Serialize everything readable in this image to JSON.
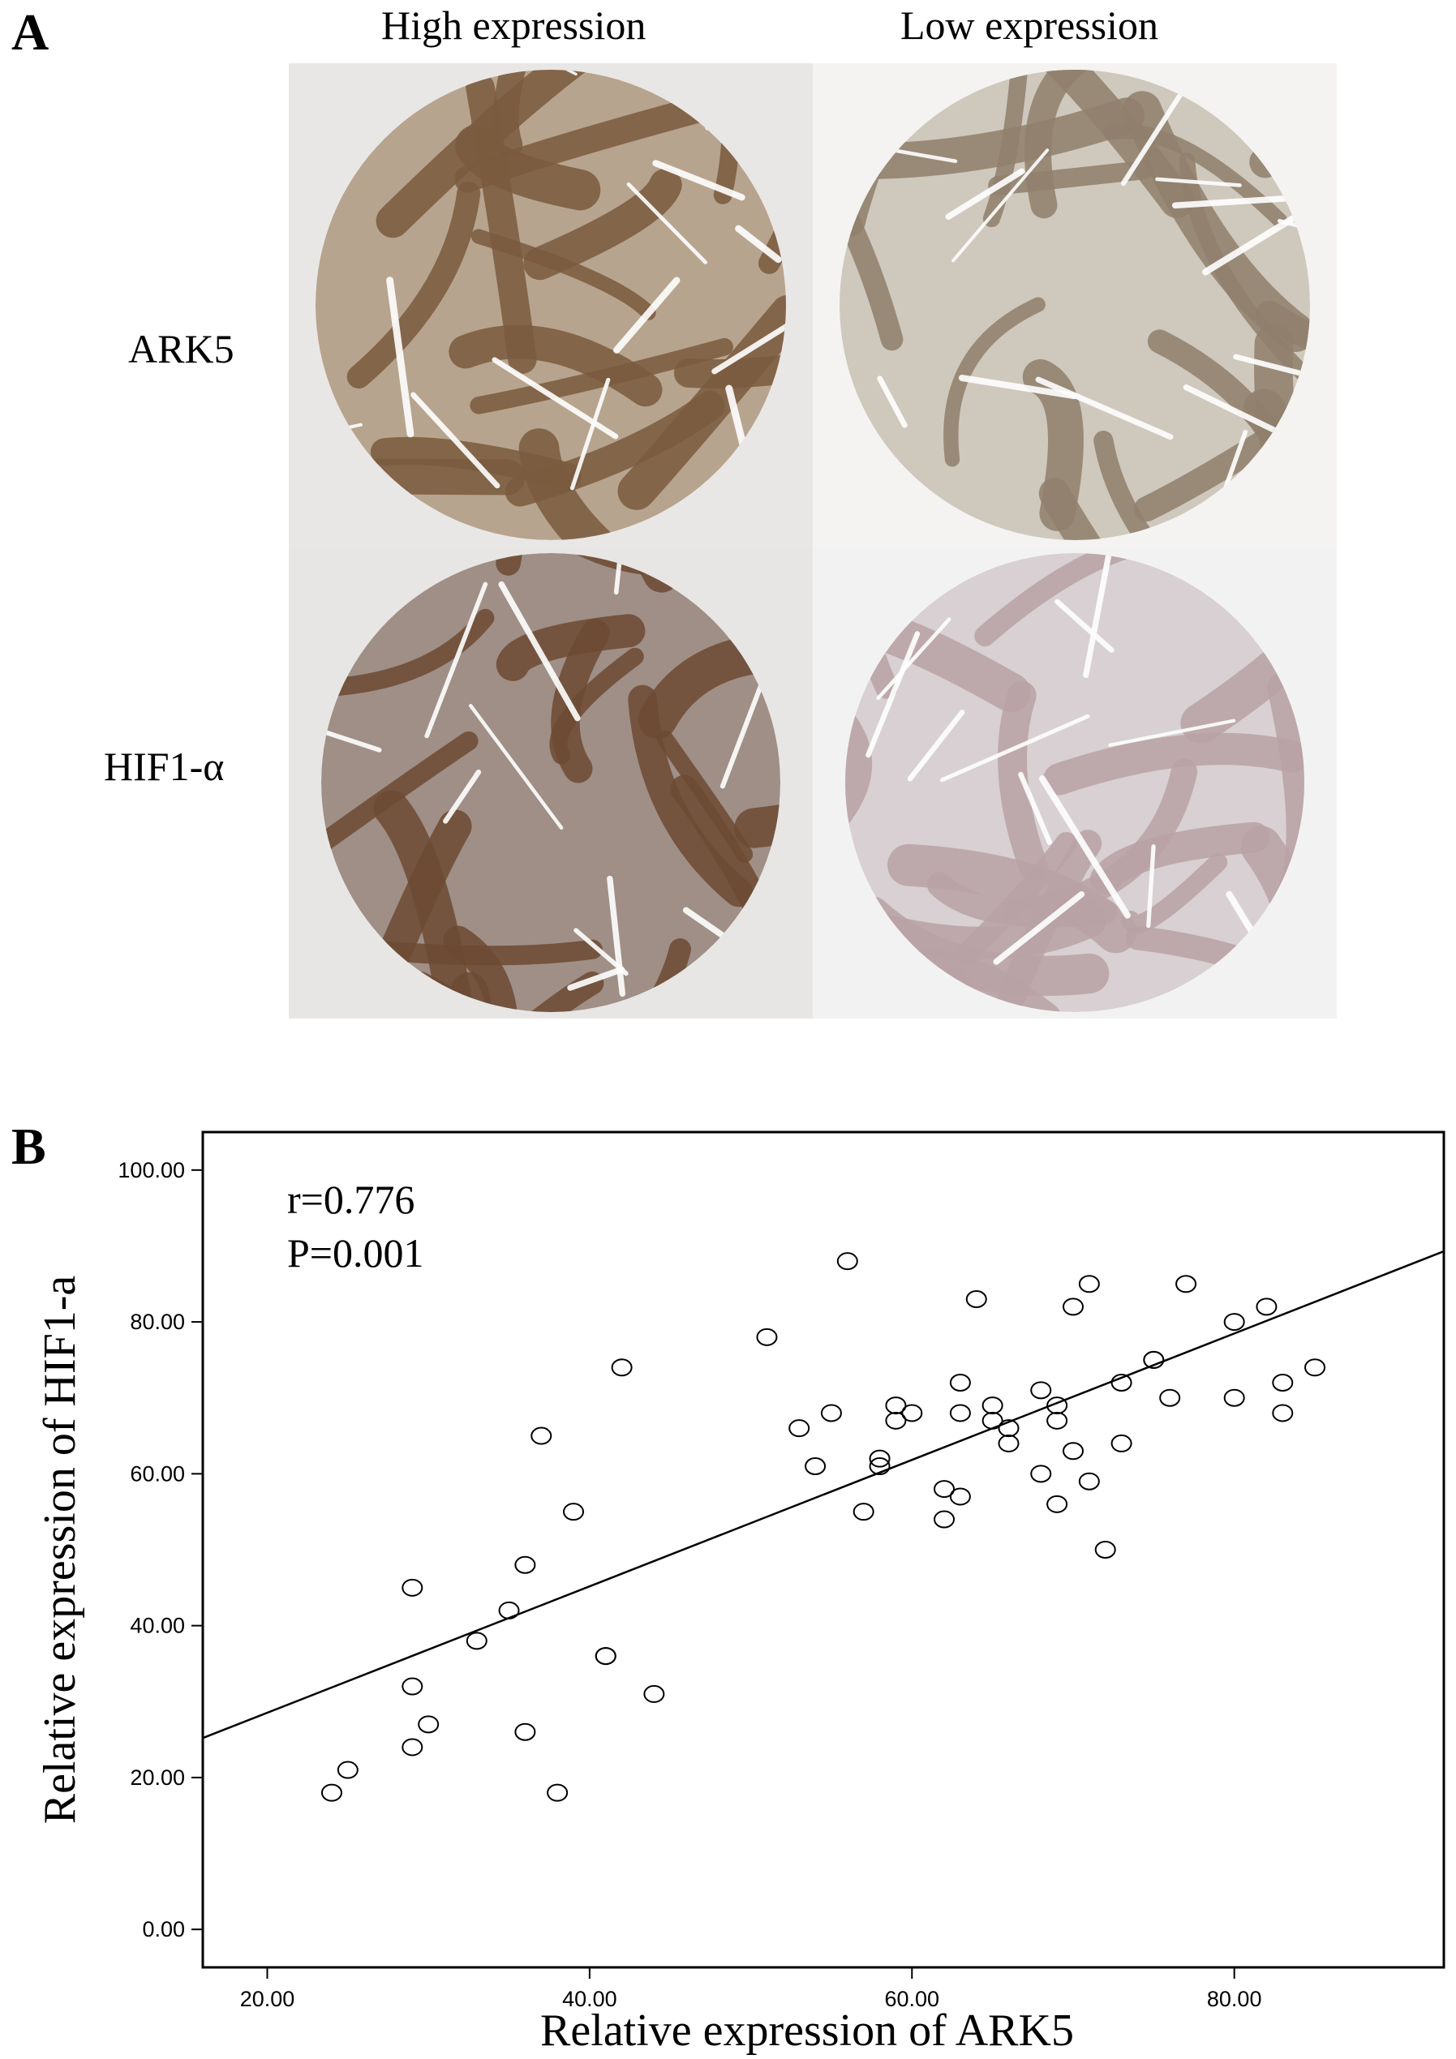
{
  "panel_a": {
    "label": "A",
    "columns": [
      "High expression",
      "Low expression"
    ],
    "rows": [
      "ARK5",
      "HIF1-α"
    ],
    "tiles": [
      {
        "name": "ark5-high",
        "stain": "#7a5a3e",
        "stroma": "#b7a48e",
        "bg": "#e9e7e5"
      },
      {
        "name": "ark5-low",
        "stain": "#8f7f6c",
        "stroma": "#cfc8bd",
        "bg": "#f4f3f1"
      },
      {
        "name": "hif1a-high",
        "stain": "#6c4a32",
        "stroma": "#9f8f86",
        "bg": "#e7e6e4"
      },
      {
        "name": "hif1a-low",
        "stain": "#b8a2a4",
        "stroma": "#d8d0d2",
        "bg": "#f3f2f2"
      }
    ]
  },
  "panel_b": {
    "label": "B",
    "stats": [
      "r=0.776",
      "P=0.001"
    ]
  },
  "chart_data": {
    "type": "scatter",
    "title": "",
    "xlabel": "Relative expression of ARK5",
    "ylabel": "Relative expression of HIF1-a",
    "xlim": [
      16.0,
      93.0
    ],
    "ylim": [
      -5.0,
      105.0
    ],
    "xticks": [
      "20.00",
      "40.00",
      "60.00",
      "80.00"
    ],
    "xtick_values": [
      20,
      40,
      60,
      80
    ],
    "yticks": [
      "0.00",
      "20.00",
      "40.00",
      "60.00",
      "80.00",
      "100.00"
    ],
    "ytick_values": [
      0,
      20,
      40,
      60,
      80,
      100
    ],
    "grid": false,
    "marker": "open-circle",
    "fit_line": {
      "x": [
        16.0,
        93.0
      ],
      "y": [
        25.2,
        89.3
      ]
    },
    "points": [
      [
        24,
        18
      ],
      [
        25,
        21
      ],
      [
        29,
        24
      ],
      [
        29,
        32
      ],
      [
        29,
        45
      ],
      [
        30,
        27
      ],
      [
        33,
        38
      ],
      [
        35,
        42
      ],
      [
        36,
        26
      ],
      [
        36,
        48
      ],
      [
        37,
        65
      ],
      [
        38,
        18
      ],
      [
        39,
        55
      ],
      [
        41,
        36
      ],
      [
        41,
        36
      ],
      [
        42,
        74
      ],
      [
        44,
        31
      ],
      [
        51,
        78
      ],
      [
        53,
        66
      ],
      [
        54,
        61
      ],
      [
        55,
        68
      ],
      [
        56,
        88
      ],
      [
        57,
        55
      ],
      [
        58,
        61
      ],
      [
        58,
        62
      ],
      [
        59,
        69
      ],
      [
        59,
        67
      ],
      [
        60,
        68
      ],
      [
        62,
        58
      ],
      [
        62,
        54
      ],
      [
        63,
        57
      ],
      [
        63,
        72
      ],
      [
        63,
        68
      ],
      [
        64,
        83
      ],
      [
        65,
        69
      ],
      [
        65,
        67
      ],
      [
        66,
        66
      ],
      [
        66,
        64
      ],
      [
        68,
        71
      ],
      [
        68,
        60
      ],
      [
        69,
        69
      ],
      [
        69,
        67
      ],
      [
        69,
        56
      ],
      [
        70,
        82
      ],
      [
        70,
        63
      ],
      [
        71,
        85
      ],
      [
        71,
        59
      ],
      [
        72,
        50
      ],
      [
        73,
        72
      ],
      [
        73,
        64
      ],
      [
        75,
        75
      ],
      [
        75,
        75
      ],
      [
        76,
        70
      ],
      [
        77,
        85
      ],
      [
        80,
        80
      ],
      [
        80,
        70
      ],
      [
        82,
        82
      ],
      [
        83,
        72
      ],
      [
        83,
        68
      ],
      [
        85,
        74
      ]
    ]
  }
}
